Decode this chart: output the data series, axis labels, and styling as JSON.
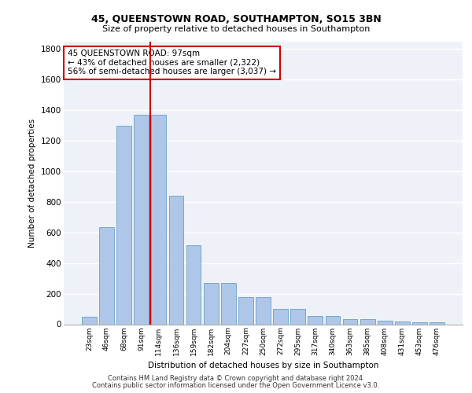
{
  "title1": "45, QUEENSTOWN ROAD, SOUTHAMPTON, SO15 3BN",
  "title2": "Size of property relative to detached houses in Southampton",
  "xlabel": "Distribution of detached houses by size in Southampton",
  "ylabel": "Number of detached properties",
  "categories": [
    "23sqm",
    "46sqm",
    "68sqm",
    "91sqm",
    "114sqm",
    "136sqm",
    "159sqm",
    "182sqm",
    "204sqm",
    "227sqm",
    "250sqm",
    "272sqm",
    "295sqm",
    "317sqm",
    "340sqm",
    "363sqm",
    "385sqm",
    "408sqm",
    "431sqm",
    "453sqm",
    "476sqm"
  ],
  "values": [
    50,
    635,
    1300,
    1370,
    1370,
    840,
    515,
    270,
    270,
    175,
    175,
    100,
    100,
    55,
    55,
    35,
    35,
    25,
    20,
    15,
    15
  ],
  "bar_color": "#aec6e8",
  "bar_edge_color": "#6a9fc8",
  "vline_x": 3.5,
  "vline_color": "#cc0000",
  "annotation_text": "45 QUEENSTOWN ROAD: 97sqm\n← 43% of detached houses are smaller (2,322)\n56% of semi-detached houses are larger (3,037) →",
  "annotation_box_color": "#ffffff",
  "annotation_box_edge": "#cc0000",
  "ylim": [
    0,
    1850
  ],
  "yticks": [
    0,
    200,
    400,
    600,
    800,
    1000,
    1200,
    1400,
    1600,
    1800
  ],
  "footer1": "Contains HM Land Registry data © Crown copyright and database right 2024.",
  "footer2": "Contains public sector information licensed under the Open Government Licence v3.0.",
  "bg_color": "#eef2f8",
  "grid_color": "#ffffff",
  "fig_width": 6.0,
  "fig_height": 5.0,
  "fig_dpi": 100
}
